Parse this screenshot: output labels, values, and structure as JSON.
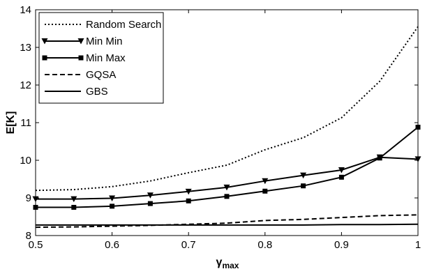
{
  "chart_data": {
    "type": "line",
    "xlabel": "γ",
    "xlabel_sub": "max",
    "ylabel": "E[K]",
    "xlim": [
      0.5,
      1
    ],
    "ylim": [
      8,
      14
    ],
    "xticks": [
      0.5,
      0.6,
      0.7,
      0.8,
      0.9,
      1
    ],
    "xtick_labels": [
      "0.5",
      "0.6",
      "0.7",
      "0.8",
      "0.9",
      "1"
    ],
    "yticks": [
      8,
      9,
      10,
      11,
      12,
      13,
      14
    ],
    "ytick_labels": [
      "8",
      "9",
      "10",
      "11",
      "12",
      "13",
      "14"
    ],
    "grid": false,
    "legend_position": "top-left",
    "x": [
      0.5,
      0.55,
      0.6,
      0.65,
      0.7,
      0.75,
      0.8,
      0.85,
      0.9,
      0.95,
      1
    ],
    "series": [
      {
        "name": "Random Search",
        "style": "dotted",
        "marker": "none",
        "values": [
          9.2,
          9.22,
          9.3,
          9.45,
          9.67,
          9.87,
          10.28,
          10.6,
          11.13,
          12.1,
          13.55
        ]
      },
      {
        "name": "Min Min",
        "style": "solid",
        "marker": "triangle-down",
        "values": [
          8.97,
          8.97,
          8.99,
          9.07,
          9.17,
          9.28,
          9.45,
          9.6,
          9.74,
          10.08,
          10.03
        ]
      },
      {
        "name": "Min Max",
        "style": "solid",
        "marker": "square",
        "values": [
          8.75,
          8.75,
          8.78,
          8.85,
          8.92,
          9.04,
          9.18,
          9.32,
          9.55,
          10.06,
          10.88
        ]
      },
      {
        "name": "GQSA",
        "style": "dashed",
        "marker": "none",
        "values": [
          8.22,
          8.23,
          8.25,
          8.27,
          8.3,
          8.33,
          8.4,
          8.43,
          8.48,
          8.53,
          8.55
        ]
      },
      {
        "name": "GBS",
        "style": "solid",
        "marker": "none",
        "values": [
          8.28,
          8.28,
          8.28,
          8.28,
          8.28,
          8.28,
          8.28,
          8.28,
          8.29,
          8.29,
          8.3
        ]
      }
    ]
  }
}
